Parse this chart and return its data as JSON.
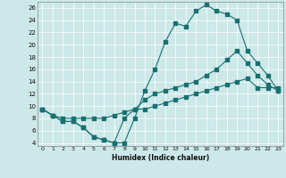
{
  "xlabel": "Humidex (Indice chaleur)",
  "background_color": "#cce8e8",
  "line_color": "#1a7070",
  "xlim": [
    -0.5,
    23.5
  ],
  "ylim": [
    3.5,
    27
  ],
  "xticks": [
    0,
    1,
    2,
    3,
    4,
    5,
    6,
    7,
    8,
    9,
    10,
    11,
    12,
    13,
    14,
    15,
    16,
    17,
    18,
    19,
    20,
    21,
    22,
    23
  ],
  "yticks": [
    4,
    6,
    8,
    10,
    12,
    14,
    16,
    18,
    20,
    22,
    24,
    26
  ],
  "line1_x": [
    0,
    1,
    2,
    3,
    4,
    5,
    6,
    7,
    8,
    9,
    10,
    11,
    12,
    13,
    14,
    15,
    16,
    17,
    18,
    19,
    20,
    21,
    22,
    23
  ],
  "line1_y": [
    9.5,
    8.5,
    7.5,
    7.5,
    6.5,
    5.0,
    4.5,
    4.0,
    4.0,
    8.0,
    12.5,
    16.0,
    20.5,
    23.5,
    23.0,
    25.5,
    26.5,
    25.5,
    25.0,
    24.0,
    19.0,
    17.0,
    15.0,
    12.5
  ],
  "line2_x": [
    0,
    1,
    2,
    3,
    4,
    5,
    6,
    7,
    8,
    9,
    10,
    11,
    12,
    13,
    14,
    15,
    16,
    17,
    18,
    19,
    20,
    21,
    22,
    23
  ],
  "line2_y": [
    9.5,
    8.5,
    7.5,
    7.5,
    6.5,
    5.0,
    4.5,
    4.0,
    8.0,
    9.5,
    11.0,
    12.0,
    12.5,
    13.0,
    13.5,
    14.0,
    15.0,
    16.0,
    17.5,
    19.0,
    17.0,
    15.0,
    13.5,
    12.5
  ],
  "line3_x": [
    0,
    1,
    2,
    3,
    4,
    5,
    6,
    7,
    8,
    9,
    10,
    11,
    12,
    13,
    14,
    15,
    16,
    17,
    18,
    19,
    20,
    21,
    22,
    23
  ],
  "line3_y": [
    9.5,
    8.5,
    8.0,
    8.0,
    8.0,
    8.0,
    8.0,
    8.5,
    9.0,
    9.5,
    9.5,
    10.0,
    10.5,
    11.0,
    11.5,
    12.0,
    12.5,
    13.0,
    13.5,
    14.0,
    14.5,
    13.0,
    13.0,
    13.0
  ]
}
